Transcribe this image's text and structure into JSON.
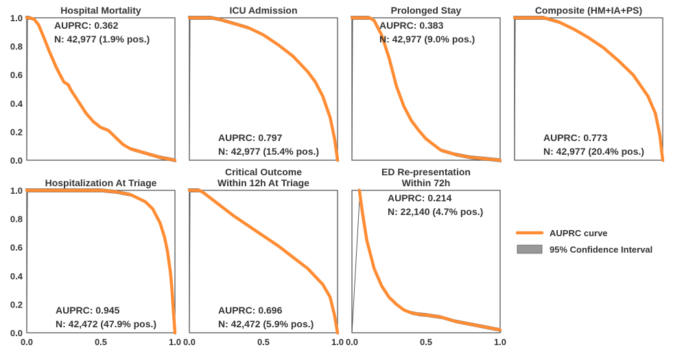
{
  "colors": {
    "curve": "#ff8c33",
    "ci_fill": "#999999",
    "ci_edge": "#555555",
    "axes": "#555555",
    "text": "#333333"
  },
  "legend": {
    "curve_label": "AUPRC curve",
    "ci_label": "95% Confidence Interval",
    "placement": "right"
  },
  "chart_data": [
    {
      "type": "line",
      "title": "Hospital Mortality",
      "xlim": [
        0,
        1
      ],
      "ylim": [
        0,
        1
      ],
      "annotation": [
        "AUPRC: 0.362",
        "N: 42,977 (1.9% pos.)"
      ],
      "annotation_position": "top",
      "x": [
        0.0,
        0.01,
        0.02,
        0.05,
        0.08,
        0.12,
        0.15,
        0.2,
        0.25,
        0.28,
        0.3,
        0.35,
        0.4,
        0.45,
        0.5,
        0.55,
        0.6,
        0.65,
        0.7,
        0.8,
        0.9,
        1.0
      ],
      "y": [
        1.0,
        1.0,
        1.0,
        0.99,
        0.95,
        0.85,
        0.77,
        0.65,
        0.55,
        0.53,
        0.49,
        0.41,
        0.33,
        0.27,
        0.23,
        0.21,
        0.16,
        0.11,
        0.08,
        0.05,
        0.02,
        0.0
      ]
    },
    {
      "type": "line",
      "title": "ICU Admission",
      "xlim": [
        0,
        1
      ],
      "ylim": [
        0,
        1
      ],
      "annotation": [
        "AUPRC: 0.797",
        "N: 42,977 (15.4% pos.)"
      ],
      "annotation_position": "bottom",
      "x": [
        0.0,
        0.01,
        0.1,
        0.15,
        0.2,
        0.3,
        0.4,
        0.5,
        0.6,
        0.7,
        0.8,
        0.85,
        0.9,
        0.95,
        0.98,
        0.99,
        1.0
      ],
      "y": [
        1.0,
        1.0,
        1.0,
        1.0,
        0.99,
        0.96,
        0.93,
        0.88,
        0.81,
        0.73,
        0.62,
        0.55,
        0.45,
        0.3,
        0.15,
        0.08,
        0.0
      ]
    },
    {
      "type": "line",
      "title": "Prolonged Stay",
      "xlim": [
        0,
        1
      ],
      "ylim": [
        0,
        1
      ],
      "annotation": [
        "AUPRC: 0.383",
        "N: 42,977 (9.0% pos.)"
      ],
      "annotation_position": "top",
      "x": [
        0.0,
        0.01,
        0.12,
        0.15,
        0.2,
        0.25,
        0.28,
        0.3,
        0.35,
        0.4,
        0.45,
        0.5,
        0.55,
        0.6,
        0.7,
        0.8,
        0.9,
        1.0
      ],
      "y": [
        1.0,
        1.0,
        1.0,
        0.98,
        0.88,
        0.72,
        0.6,
        0.52,
        0.38,
        0.28,
        0.21,
        0.15,
        0.11,
        0.07,
        0.04,
        0.02,
        0.01,
        0.0
      ]
    },
    {
      "type": "line",
      "title": "Composite (HM+IA+PS)",
      "xlim": [
        0,
        1
      ],
      "ylim": [
        0,
        1
      ],
      "annotation": [
        "AUPRC: 0.773",
        "N: 42,977 (20.4% pos.)"
      ],
      "annotation_position": "bottom",
      "x": [
        0.0,
        0.01,
        0.2,
        0.3,
        0.4,
        0.5,
        0.6,
        0.7,
        0.8,
        0.9,
        0.95,
        0.98,
        1.0
      ],
      "y": [
        1.0,
        1.0,
        1.0,
        0.97,
        0.92,
        0.86,
        0.79,
        0.7,
        0.6,
        0.45,
        0.33,
        0.18,
        0.0
      ]
    },
    {
      "type": "line",
      "title": "Hospitalization At Triage",
      "xlim": [
        0,
        1
      ],
      "ylim": [
        0,
        1
      ],
      "annotation": [
        "AUPRC: 0.945",
        "N: 42,472 (47.9% pos.)"
      ],
      "annotation_position": "bottom",
      "x": [
        0.0,
        0.01,
        0.45,
        0.5,
        0.6,
        0.7,
        0.8,
        0.85,
        0.9,
        0.93,
        0.95,
        0.97,
        0.98,
        0.99,
        1.0
      ],
      "y": [
        1.0,
        1.0,
        1.0,
        1.0,
        0.99,
        0.97,
        0.92,
        0.87,
        0.77,
        0.67,
        0.57,
        0.42,
        0.3,
        0.15,
        0.0
      ]
    },
    {
      "type": "line",
      "title": "Critical Outcome\nWithin 12h At Triage",
      "xlim": [
        0,
        1
      ],
      "ylim": [
        0,
        1
      ],
      "annotation": [
        "AUPRC: 0.696",
        "N: 42,472 (5.9% pos.)"
      ],
      "annotation_position": "bottom",
      "x": [
        0.0,
        0.01,
        0.07,
        0.1,
        0.2,
        0.3,
        0.4,
        0.5,
        0.6,
        0.7,
        0.8,
        0.9,
        0.95,
        0.98,
        1.0
      ],
      "y": [
        1.0,
        1.0,
        1.0,
        0.98,
        0.9,
        0.82,
        0.75,
        0.68,
        0.61,
        0.53,
        0.45,
        0.34,
        0.25,
        0.12,
        0.0
      ]
    },
    {
      "type": "line",
      "title": "ED Re-presentation\nWithin 72h",
      "xlim": [
        0,
        1
      ],
      "ylim": [
        0,
        1
      ],
      "annotation": [
        "AUPRC: 0.214",
        "N: 22,140 (4.7% pos.)"
      ],
      "annotation_position": "top",
      "x": [
        0.05,
        0.07,
        0.1,
        0.15,
        0.2,
        0.25,
        0.3,
        0.35,
        0.4,
        0.45,
        0.5,
        0.6,
        0.7,
        0.8,
        0.9,
        1.0
      ],
      "y": [
        1.0,
        0.85,
        0.65,
        0.45,
        0.33,
        0.25,
        0.2,
        0.16,
        0.14,
        0.13,
        0.125,
        0.11,
        0.08,
        0.06,
        0.04,
        0.02
      ]
    }
  ]
}
